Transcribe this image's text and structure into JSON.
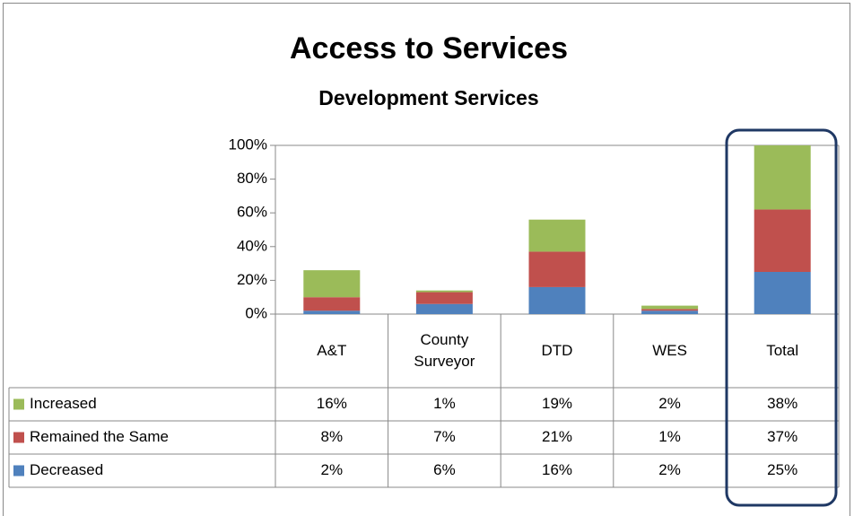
{
  "chart_data": {
    "type": "stacked_bar",
    "title": "Access to Services",
    "subtitle": "Development Services",
    "categories": [
      "A&T",
      "County Surveyor",
      "DTD",
      "WES",
      "Total"
    ],
    "series": [
      {
        "name": "Increased",
        "color": "#9bbb59",
        "values": [
          16,
          1,
          19,
          2,
          38
        ],
        "value_labels": [
          "16%",
          "1%",
          "19%",
          "2%",
          "38%"
        ]
      },
      {
        "name": "Remained the Same",
        "color": "#c0504d",
        "values": [
          8,
          7,
          21,
          1,
          37
        ],
        "value_labels": [
          "8%",
          "7%",
          "21%",
          "1%",
          "37%"
        ]
      },
      {
        "name": "Decreased",
        "color": "#4f81bd",
        "values": [
          2,
          6,
          16,
          2,
          25
        ],
        "value_labels": [
          "2%",
          "6%",
          "16%",
          "2%",
          "25%"
        ]
      }
    ],
    "ylim": [
      0,
      100
    ],
    "yticks": [
      {
        "value": 0,
        "label": "0%"
      },
      {
        "value": 20,
        "label": "20%"
      },
      {
        "value": 40,
        "label": "40%"
      },
      {
        "value": 60,
        "label": "60%"
      },
      {
        "value": 80,
        "label": "80%"
      },
      {
        "value": 100,
        "label": "100%"
      }
    ]
  }
}
